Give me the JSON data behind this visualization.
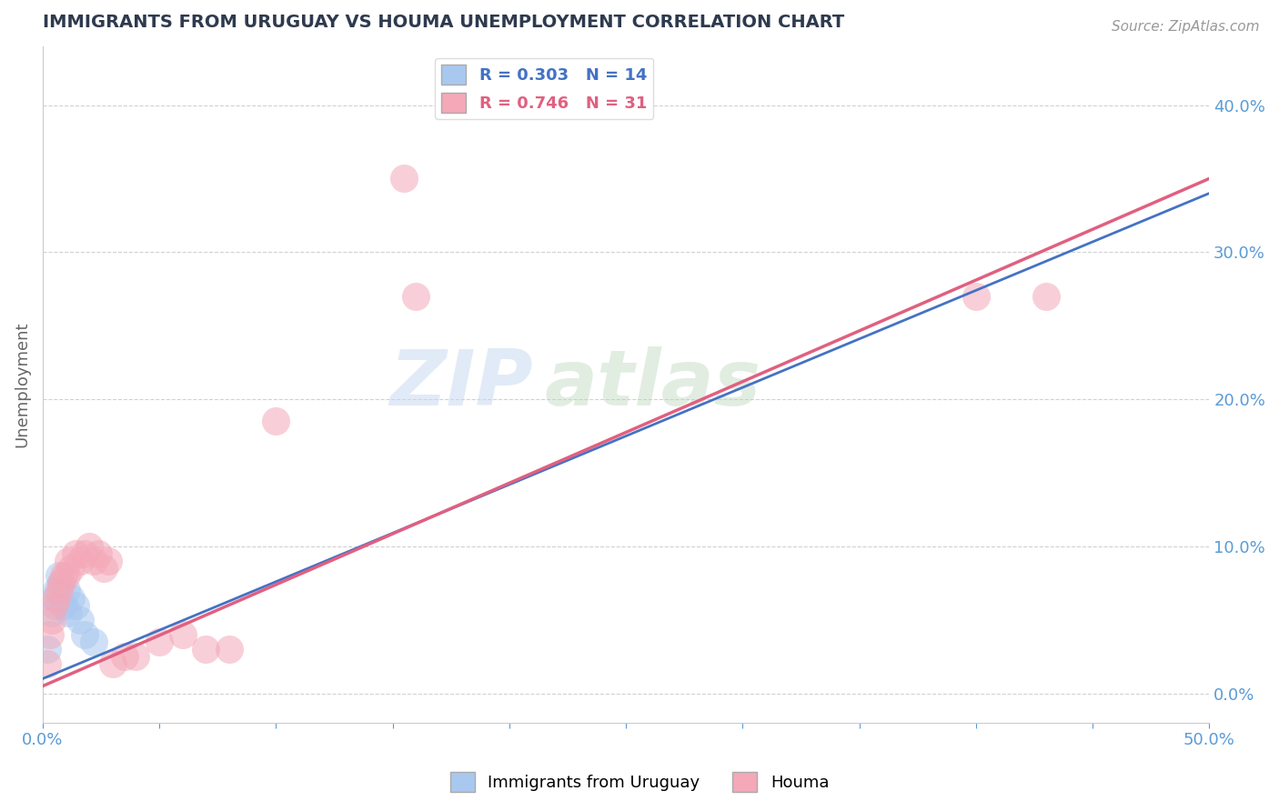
{
  "title": "IMMIGRANTS FROM URUGUAY VS HOUMA UNEMPLOYMENT CORRELATION CHART",
  "source": "Source: ZipAtlas.com",
  "ylabel": "Unemployment",
  "xlim": [
    0.0,
    0.5
  ],
  "ylim": [
    -0.02,
    0.44
  ],
  "yticks": [
    0.0,
    0.1,
    0.2,
    0.3,
    0.4
  ],
  "xticks": [
    0.0,
    0.05,
    0.1,
    0.15,
    0.2,
    0.25,
    0.3,
    0.35,
    0.4,
    0.45,
    0.5
  ],
  "blue_R": 0.303,
  "blue_N": 14,
  "pink_R": 0.746,
  "pink_N": 31,
  "blue_color": "#a8c8f0",
  "pink_color": "#f4a8b8",
  "blue_line_color": "#4472c4",
  "pink_line_color": "#e06080",
  "legend_label_blue": "Immigrants from Uruguay",
  "legend_label_pink": "Houma",
  "watermark_zip": "ZIP",
  "watermark_atlas": "atlas",
  "blue_x": [
    0.002,
    0.004,
    0.005,
    0.006,
    0.007,
    0.008,
    0.009,
    0.01,
    0.011,
    0.012,
    0.014,
    0.016,
    0.018,
    0.022
  ],
  "blue_y": [
    0.03,
    0.055,
    0.065,
    0.07,
    0.08,
    0.075,
    0.06,
    0.07,
    0.055,
    0.065,
    0.06,
    0.05,
    0.04,
    0.035
  ],
  "pink_x": [
    0.002,
    0.003,
    0.004,
    0.005,
    0.006,
    0.007,
    0.008,
    0.009,
    0.01,
    0.011,
    0.012,
    0.014,
    0.016,
    0.018,
    0.02,
    0.022,
    0.024,
    0.026,
    0.028,
    0.03,
    0.035,
    0.04,
    0.05,
    0.06,
    0.07,
    0.08,
    0.1,
    0.155,
    0.16,
    0.4,
    0.43
  ],
  "pink_y": [
    0.02,
    0.04,
    0.05,
    0.06,
    0.065,
    0.07,
    0.075,
    0.08,
    0.08,
    0.09,
    0.085,
    0.095,
    0.09,
    0.095,
    0.1,
    0.09,
    0.095,
    0.085,
    0.09,
    0.02,
    0.025,
    0.025,
    0.035,
    0.04,
    0.03,
    0.03,
    0.185,
    0.35,
    0.27,
    0.27,
    0.27
  ],
  "background_color": "#ffffff",
  "grid_color": "#cccccc"
}
